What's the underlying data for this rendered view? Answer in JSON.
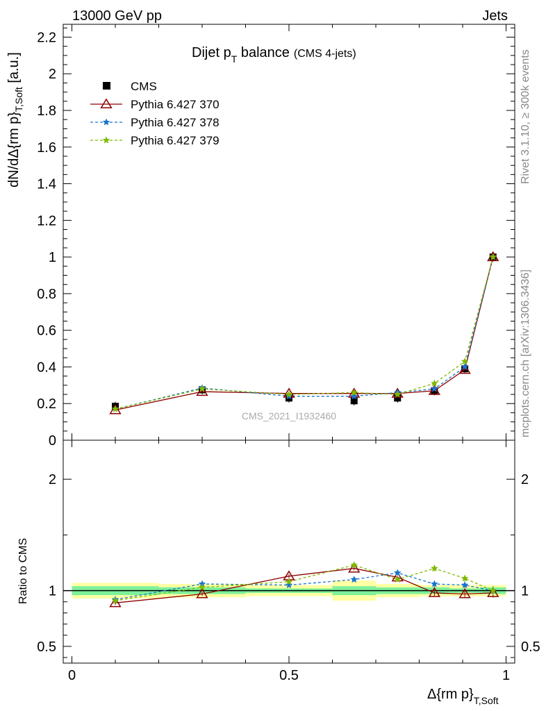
{
  "header": {
    "left": "13000 GeV pp",
    "right": "Jets"
  },
  "side_text": {
    "top": "Rivet 3.1.10, ≥ 300k events",
    "bottom": "mcplots.cern.ch [arXiv:1306.3436]"
  },
  "watermark": "CMS_2021_I1932460",
  "chart_data": {
    "type": "line",
    "title": {
      "main": "Dijet p",
      "sub": "T",
      "tail": " balance",
      "note": "(CMS 4-jets)"
    },
    "xlabel": {
      "main": "Δ{rm p}",
      "sub": "T,Soft"
    },
    "ylabel": {
      "main": "dN/dΔ{rm p}",
      "sub": "T,Soft",
      "tail": " [a.u.]"
    },
    "ratio_ylabel": "Ratio to CMS",
    "xlim": [
      -0.02,
      1.02
    ],
    "ylim": [
      0,
      2.27
    ],
    "ratio_ylim": [
      0.35,
      2.35
    ],
    "xticks": [
      {
        "v": 0,
        "label": "0"
      },
      {
        "v": 0.5,
        "label": "0.5"
      },
      {
        "v": 1,
        "label": "1"
      }
    ],
    "yticks": [
      {
        "v": 0,
        "label": "0"
      },
      {
        "v": 0.2,
        "label": "0.2"
      },
      {
        "v": 0.4,
        "label": "0.4"
      },
      {
        "v": 0.6,
        "label": "0.6"
      },
      {
        "v": 0.8,
        "label": "0.8"
      },
      {
        "v": 1,
        "label": "1"
      },
      {
        "v": 1.2,
        "label": "1.2"
      },
      {
        "v": 1.4,
        "label": "1.4"
      },
      {
        "v": 1.6,
        "label": "1.6"
      },
      {
        "v": 1.8,
        "label": "1.8"
      },
      {
        "v": 2,
        "label": "2"
      },
      {
        "v": 2.2,
        "label": "2.2"
      }
    ],
    "ratio_yticks": [
      {
        "v": 0.5,
        "label": "0.5"
      },
      {
        "v": 1,
        "label": "1"
      },
      {
        "v": 2,
        "label": "2"
      }
    ],
    "bins": [
      0,
      0.2,
      0.4,
      0.6,
      0.7,
      0.8,
      0.87,
      0.94,
      1.0
    ],
    "x": [
      0.1,
      0.3,
      0.5,
      0.65,
      0.75,
      0.835,
      0.905,
      0.97
    ],
    "data": {
      "name": "CMS",
      "y": [
        0.185,
        0.275,
        0.23,
        0.215,
        0.23,
        0.27,
        0.39,
        1.0
      ],
      "band_inner": [
        0.04,
        0.03,
        0.02,
        0.04,
        0.03,
        0.03,
        0.02,
        0.03
      ],
      "band_outer": [
        0.07,
        0.06,
        0.05,
        0.09,
        0.06,
        0.05,
        0.05,
        0.05
      ]
    },
    "series": [
      {
        "name": "Pythia 6.427 370",
        "color": "#8b0000",
        "dash": false,
        "marker": "triangle",
        "y": [
          0.165,
          0.265,
          0.255,
          0.255,
          0.255,
          0.27,
          0.385,
          1.0
        ],
        "ratio": [
          0.89,
          0.97,
          1.13,
          1.2,
          1.12,
          0.98,
          0.97,
          0.98
        ]
      },
      {
        "name": "Pythia 6.427 378",
        "color": "#1874cd",
        "dash": true,
        "marker": "star",
        "y": [
          0.17,
          0.285,
          0.24,
          0.24,
          0.26,
          0.28,
          0.4,
          1.0
        ],
        "ratio": [
          0.92,
          1.06,
          1.05,
          1.1,
          1.16,
          1.06,
          1.05,
          1.0
        ]
      },
      {
        "name": "Pythia 6.427 379",
        "color": "#7fba00",
        "dash": true,
        "marker": "star",
        "y": [
          0.17,
          0.28,
          0.25,
          0.26,
          0.25,
          0.31,
          0.43,
          1.0
        ],
        "ratio": [
          0.91,
          1.03,
          1.08,
          1.23,
          1.1,
          1.2,
          1.11,
          1.0
        ]
      }
    ],
    "legend_position": "top-left"
  }
}
